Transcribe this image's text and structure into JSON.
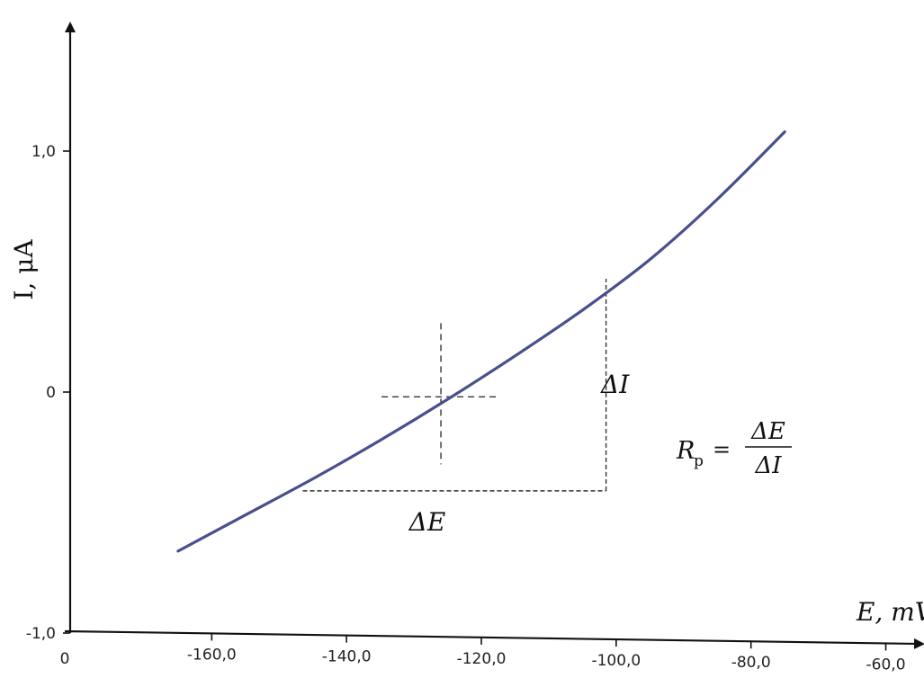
{
  "chart_data": {
    "type": "line",
    "xlabel": "E, mV",
    "ylabel": "I, μA",
    "xlim": [
      -181.0,
      -55.0
    ],
    "ylim": [
      -1.0,
      1.0
    ],
    "x_origin_label": "0",
    "x_ticks": [
      {
        "value": -160,
        "label": "-160,0"
      },
      {
        "value": -140,
        "label": "-140,0"
      },
      {
        "value": -120,
        "label": "-120,0"
      },
      {
        "value": -100,
        "label": "-100,0"
      },
      {
        "value": -80,
        "label": "-80,0"
      },
      {
        "value": -60,
        "label": "-60,0"
      }
    ],
    "y_ticks": [
      {
        "value": 1.0,
        "label": "1,0"
      },
      {
        "value": 0,
        "label": "0"
      },
      {
        "value": -1.0,
        "label": "-1,0"
      }
    ],
    "grid": false,
    "series": [
      {
        "color": "#4a4f8c",
        "x": [
          -165.0,
          -155.0,
          -145.0,
          -135.0,
          -125.0,
          -115.0,
          -105.0,
          -95.0,
          -85.0,
          -75.0
        ],
        "y": [
          -0.66,
          -0.51,
          -0.36,
          -0.2,
          -0.03,
          0.15,
          0.34,
          0.55,
          0.8,
          1.08
        ]
      }
    ],
    "annotations": {
      "crosshair": {
        "x": -126.0,
        "y": -0.02
      },
      "triangle": {
        "x1": -146.5,
        "y1": -0.41,
        "x2": -101.5,
        "y2": 0.47
      },
      "delta_e_label": "ΔE",
      "delta_i_label": "ΔI",
      "formula": {
        "lhs": "R",
        "subscript": "p",
        "equals": "=",
        "numerator": "ΔE",
        "denominator": "ΔI"
      }
    }
  }
}
